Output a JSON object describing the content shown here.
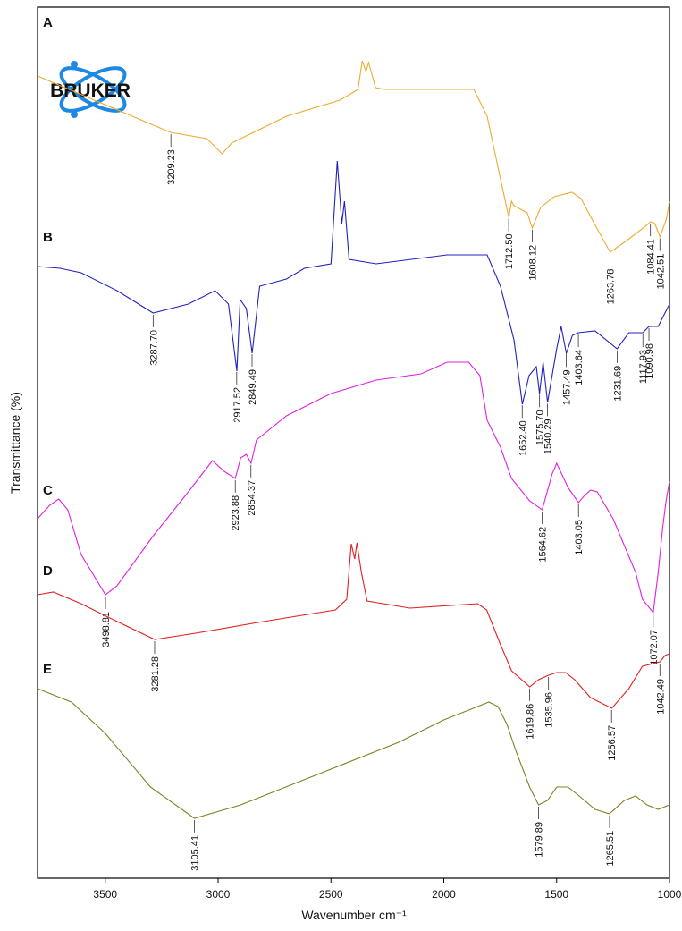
{
  "chart_data": {
    "type": "line",
    "xlabel": "Wavenumber cm⁻¹",
    "ylabel": "Transmittance (%)",
    "logo_text": "BRUKER",
    "xlim": [
      3800,
      1000
    ],
    "xticks": [
      3500,
      3000,
      2500,
      2000,
      1500,
      1000
    ],
    "ylim": [
      0,
      974
    ],
    "series": [
      {
        "name": "A",
        "color": "#f0a830",
        "x": [
          3800,
          3567,
          3211,
          3050,
          2982,
          2940,
          2697,
          2460,
          2380,
          2361,
          2345,
          2333,
          2302,
          2262,
          1867,
          1808,
          1749,
          1712,
          1700,
          1689,
          1630,
          1608,
          1571,
          1511,
          1432,
          1392,
          1333,
          1263,
          1195,
          1116,
          1084,
          1065,
          1042,
          1014,
          1000
        ],
        "values": [
          897,
          872,
          834,
          827,
          810,
          822,
          852,
          870,
          882,
          914,
          902,
          912,
          884,
          882,
          882,
          852,
          782,
          739,
          757,
          752,
          744,
          727,
          750,
          762,
          767,
          760,
          732,
          700,
          712,
          727,
          734,
          732,
          717,
          737,
          757
        ],
        "peaks": [
          {
            "value": 3209.23,
            "label": "3209.23"
          },
          {
            "value": 1712.5,
            "label": "1712.50"
          },
          {
            "value": 1608.12,
            "label": "1608.12"
          },
          {
            "value": 1263.78,
            "label": "1263.78"
          },
          {
            "value": 1084.41,
            "label": "1084.41"
          },
          {
            "value": 1042.51,
            "label": "1042.51"
          }
        ]
      },
      {
        "name": "B",
        "color": "#2222bb",
        "x": [
          3800,
          3700,
          3607,
          3448,
          3288,
          3132,
          3013,
          2954,
          2917,
          2902,
          2875,
          2849,
          2816,
          2697,
          2618,
          2500,
          2472,
          2452,
          2440,
          2420,
          2300,
          1985,
          1808,
          1749,
          1689,
          1652,
          1622,
          1590,
          1576,
          1560,
          1540,
          1500,
          1480,
          1457,
          1430,
          1404,
          1330,
          1232,
          1180,
          1118,
          1091,
          1050,
          1000
        ],
        "values": [
          684,
          682,
          677,
          657,
          632,
          642,
          657,
          642,
          567,
          647,
          637,
          587,
          662,
          670,
          682,
          687,
          802,
          732,
          757,
          692,
          687,
          697,
          697,
          662,
          602,
          530,
          562,
          572,
          542,
          577,
          532,
          592,
          617,
          587,
          607,
          610,
          612,
          592,
          610,
          610,
          617,
          617,
          642
        ],
        "peaks": [
          {
            "value": 3287.7,
            "label": "3287.70"
          },
          {
            "value": 2917.52,
            "label": "2917.52"
          },
          {
            "value": 2849.49,
            "label": "2849.49"
          },
          {
            "value": 1652.4,
            "label": "1652.40"
          },
          {
            "value": 1575.7,
            "label": "1575.70"
          },
          {
            "value": 1540.29,
            "label": "1540.29"
          },
          {
            "value": 1457.49,
            "label": "1457.49"
          },
          {
            "value": 1403.64,
            "label": "1403.64"
          },
          {
            "value": 1231.69,
            "label": "1231.69"
          },
          {
            "value": 1117.93,
            "label": "1117.93"
          },
          {
            "value": 1090.98,
            "label": "1090.98"
          }
        ]
      },
      {
        "name": "C",
        "color": "#e020e0",
        "x": [
          3800,
          3746,
          3706,
          3666,
          3607,
          3499,
          3448,
          3290,
          3132,
          3025,
          2974,
          2924,
          2900,
          2875,
          2854,
          2830,
          2697,
          2500,
          2300,
          2100,
          1985,
          1890,
          1840,
          1808,
          1749,
          1700,
          1620,
          1564,
          1520,
          1500,
          1450,
          1403,
          1380,
          1350,
          1320,
          1250,
          1200,
          1150,
          1120,
          1072,
          1050,
          1030,
          1015,
          1000
        ],
        "values": [
          402,
          417,
          424,
          412,
          362,
          317,
          327,
          382,
          432,
          467,
          455,
          447,
          470,
          474,
          464,
          490,
          517,
          542,
          557,
          564,
          577,
          577,
          562,
          512,
          482,
          447,
          422,
          412,
          452,
          464,
          437,
          420,
          427,
          434,
          432,
          402,
          372,
          342,
          312,
          297,
          342,
          392,
          422,
          444
        ],
        "peaks": [
          {
            "value": 3498.81,
            "label": "3498.81"
          },
          {
            "value": 2923.88,
            "label": "2923.88"
          },
          {
            "value": 2854.37,
            "label": "2854.37"
          },
          {
            "value": 1564.62,
            "label": "1564.62"
          },
          {
            "value": 1403.05,
            "label": "1403.05"
          },
          {
            "value": 1072.07,
            "label": "1072.07"
          }
        ]
      },
      {
        "name": "D",
        "color": "#e02020",
        "x": [
          3800,
          3730,
          3607,
          3488,
          3281,
          3100,
          2800,
          2480,
          2430,
          2410,
          2395,
          2385,
          2365,
          2340,
          2150,
          1850,
          1810,
          1750,
          1700,
          1619,
          1580,
          1536,
          1500,
          1460,
          1420,
          1350,
          1256,
          1180,
          1120,
          1042,
          1020,
          1000
        ],
        "values": [
          317,
          320,
          307,
          292,
          267,
          274,
          287,
          300,
          312,
          374,
          357,
          375,
          342,
          310,
          302,
          307,
          300,
          262,
          232,
          214,
          222,
          227,
          230,
          230,
          222,
          202,
          190,
          212,
          237,
          242,
          249,
          251
        ],
        "peaks": [
          {
            "value": 3281.28,
            "label": "3281.28"
          },
          {
            "value": 1619.86,
            "label": "1619.86"
          },
          {
            "value": 1535.96,
            "label": "1535.96"
          },
          {
            "value": 1256.57,
            "label": "1256.57"
          },
          {
            "value": 1042.49,
            "label": "1042.49"
          }
        ]
      },
      {
        "name": "E",
        "color": "#808020",
        "x": [
          3800,
          3750,
          3650,
          3500,
          3300,
          3105,
          2900,
          2700,
          2500,
          2200,
          2000,
          1850,
          1800,
          1760,
          1720,
          1680,
          1620,
          1580,
          1540,
          1500,
          1450,
          1400,
          1330,
          1266,
          1200,
          1150,
          1100,
          1050,
          1000
        ],
        "values": [
          212,
          207,
          197,
          162,
          102,
          67,
          82,
          102,
          122,
          152,
          177,
          192,
          197,
          192,
          172,
          142,
          102,
          82,
          87,
          102,
          102,
          92,
          77,
          72,
          87,
          92,
          82,
          77,
          82
        ],
        "peaks": [
          {
            "value": 3105.41,
            "label": "3105.41"
          },
          {
            "value": 1579.89,
            "label": "1579.89"
          },
          {
            "value": 1265.51,
            "label": "1265.51"
          }
        ]
      }
    ]
  }
}
